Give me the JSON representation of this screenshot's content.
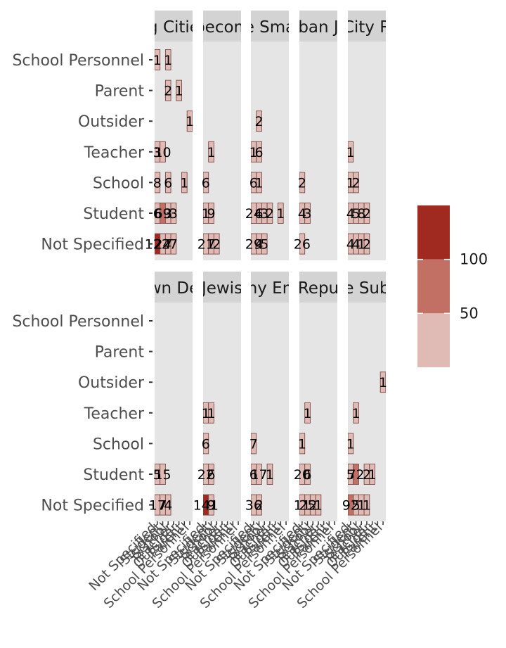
{
  "chart_data": {
    "type": "heatmap",
    "title": "",
    "xlabel": "",
    "ylabel": "",
    "y_categories": [
      "School Personnel",
      "Parent",
      "Outsider",
      "Teacher",
      "School",
      "Student",
      "Not Specified"
    ],
    "x_categories": [
      "Not Specified",
      "Student",
      "School",
      "Teacher",
      "Outsider",
      "Parent",
      "School Personnel"
    ],
    "panels": [
      {
        "strip": "g Citie",
        "cells": [
          {
            "y": "School Personnel",
            "x": "Not Specified",
            "label": "1",
            "value": 1
          },
          {
            "y": "School Personnel",
            "x": "School",
            "label": "1",
            "value": 1
          },
          {
            "y": "Parent",
            "x": "School",
            "label": "2",
            "value": 2
          },
          {
            "y": "Parent",
            "x": "Outsider",
            "label": "1",
            "value": 1
          },
          {
            "y": "Outsider",
            "x": "School Personnel",
            "label": "1",
            "value": 1
          },
          {
            "y": "Teacher",
            "x": "Not Specified",
            "label": "3",
            "value": 3
          },
          {
            "y": "Teacher",
            "x": "Student",
            "label": "10",
            "value": 10
          },
          {
            "y": "School",
            "x": "Not Specified",
            "label": "8",
            "value": 8
          },
          {
            "y": "School",
            "x": "School",
            "label": "6",
            "value": 6
          },
          {
            "y": "School",
            "x": "Parent",
            "label": "1",
            "value": 1
          },
          {
            "y": "Student",
            "x": "Not Specified",
            "label": "6",
            "value": 6
          },
          {
            "y": "Student",
            "x": "Student",
            "label": "69",
            "value": 69
          },
          {
            "y": "Student",
            "x": "School",
            "label": "3",
            "value": 3
          },
          {
            "y": "Student",
            "x": "Teacher",
            "label": "3",
            "value": 3
          },
          {
            "y": "Not Specified",
            "x": "Not Specified",
            "label": "122",
            "value": 122
          },
          {
            "y": "Not Specified",
            "x": "Student",
            "label": "24",
            "value": 24
          },
          {
            "y": "Not Specified",
            "x": "School",
            "label": "7",
            "value": 7
          },
          {
            "y": "Not Specified",
            "x": "Teacher",
            "label": "7",
            "value": 7
          }
        ]
      },
      {
        "strip": "becom",
        "cells": [
          {
            "y": "Teacher",
            "x": "Student",
            "label": "1",
            "value": 1
          },
          {
            "y": "School",
            "x": "Not Specified",
            "label": "6",
            "value": 6
          },
          {
            "y": "Student",
            "x": "Not Specified",
            "label": "1",
            "value": 1
          },
          {
            "y": "Student",
            "x": "Student",
            "label": "9",
            "value": 9
          },
          {
            "y": "Not Specified",
            "x": "Not Specified",
            "label": "21",
            "value": 21
          },
          {
            "y": "Not Specified",
            "x": "Student",
            "label": "7",
            "value": 7
          },
          {
            "y": "Not Specified",
            "x": "School",
            "label": "2",
            "value": 2
          }
        ]
      },
      {
        "strip": "e Sma",
        "cells": [
          {
            "y": "Outsider",
            "x": "Student",
            "label": "2",
            "value": 2
          },
          {
            "y": "Teacher",
            "x": "Not Specified",
            "label": "1",
            "value": 1
          },
          {
            "y": "Teacher",
            "x": "Student",
            "label": "6",
            "value": 6
          },
          {
            "y": "School",
            "x": "Not Specified",
            "label": "6",
            "value": 6
          },
          {
            "y": "School",
            "x": "Student",
            "label": "1",
            "value": 1
          },
          {
            "y": "Student",
            "x": "Not Specified",
            "label": "24",
            "value": 24
          },
          {
            "y": "Student",
            "x": "Student",
            "label": "6",
            "value": 6
          },
          {
            "y": "Student",
            "x": "School",
            "label": "3",
            "value": 3
          },
          {
            "y": "Student",
            "x": "Teacher",
            "label": "2",
            "value": 2
          },
          {
            "y": "Student",
            "x": "Parent",
            "label": "1",
            "value": 1
          },
          {
            "y": "Not Specified",
            "x": "Not Specified",
            "label": "29",
            "value": 29
          },
          {
            "y": "Not Specified",
            "x": "Student",
            "label": "4",
            "value": 4
          },
          {
            "y": "Not Specified",
            "x": "School",
            "label": "5",
            "value": 5
          }
        ]
      },
      {
        "strip": "ban J",
        "cells": [
          {
            "y": "School",
            "x": "Not Specified",
            "label": "2",
            "value": 2
          },
          {
            "y": "Student",
            "x": "Not Specified",
            "label": "4",
            "value": 4
          },
          {
            "y": "Student",
            "x": "Student",
            "label": "3",
            "value": 3
          },
          {
            "y": "Not Specified",
            "x": "Not Specified",
            "label": "26",
            "value": 26
          }
        ]
      },
      {
        "strip": "City R",
        "cells": [
          {
            "y": "Teacher",
            "x": "Not Specified",
            "label": "1",
            "value": 1
          },
          {
            "y": "School",
            "x": "Not Specified",
            "label": "1",
            "value": 1
          },
          {
            "y": "School",
            "x": "Student",
            "label": "2",
            "value": 2
          },
          {
            "y": "Student",
            "x": "Not Specified",
            "label": "4",
            "value": 4
          },
          {
            "y": "Student",
            "x": "Student",
            "label": "5",
            "value": 5
          },
          {
            "y": "Student",
            "x": "School",
            "label": "8",
            "value": 8
          },
          {
            "y": "Student",
            "x": "Teacher",
            "label": "2",
            "value": 2
          },
          {
            "y": "Not Specified",
            "x": "Not Specified",
            "label": "4",
            "value": 4
          },
          {
            "y": "Not Specified",
            "x": "Student",
            "label": "4",
            "value": 4
          },
          {
            "y": "Not Specified",
            "x": "School",
            "label": "1",
            "value": 1
          },
          {
            "y": "Not Specified",
            "x": "Teacher",
            "label": "2",
            "value": 2
          }
        ]
      },
      {
        "strip": "wn De",
        "cells": [
          {
            "y": "Student",
            "x": "Not Specified",
            "label": "5",
            "value": 5
          },
          {
            "y": "Student",
            "x": "Student",
            "label": "15",
            "value": 15
          },
          {
            "y": "Not Specified",
            "x": "Not Specified",
            "label": "17",
            "value": 17
          },
          {
            "y": "Not Specified",
            "x": "Student",
            "label": "7",
            "value": 7
          },
          {
            "y": "Not Specified",
            "x": "School",
            "label": "4",
            "value": 4
          }
        ]
      },
      {
        "strip": "Jewis",
        "cells": [
          {
            "y": "Teacher",
            "x": "Not Specified",
            "label": "1",
            "value": 1
          },
          {
            "y": "Teacher",
            "x": "Student",
            "label": "1",
            "value": 1
          },
          {
            "y": "School",
            "x": "Not Specified",
            "label": "6",
            "value": 6
          },
          {
            "y": "Student",
            "x": "Not Specified",
            "label": "22",
            "value": 22
          },
          {
            "y": "Student",
            "x": "Student",
            "label": "6",
            "value": 6
          },
          {
            "y": "Not Specified",
            "x": "Not Specified",
            "label": "141",
            "value": 141
          },
          {
            "y": "Not Specified",
            "x": "Student",
            "label": "9",
            "value": 9
          }
        ]
      },
      {
        "strip": "ny En",
        "cells": [
          {
            "y": "School",
            "x": "Not Specified",
            "label": "7",
            "value": 7
          },
          {
            "y": "Student",
            "x": "Not Specified",
            "label": "6",
            "value": 6
          },
          {
            "y": "Student",
            "x": "Student",
            "label": "17",
            "value": 17
          },
          {
            "y": "Student",
            "x": "Teacher",
            "label": "1",
            "value": 1
          },
          {
            "y": "Not Specified",
            "x": "Not Specified",
            "label": "36",
            "value": 36
          },
          {
            "y": "Not Specified",
            "x": "Student",
            "label": "2",
            "value": 2
          }
        ]
      },
      {
        "strip": "Repu",
        "cells": [
          {
            "y": "Teacher",
            "x": "Student",
            "label": "1",
            "value": 1
          },
          {
            "y": "School",
            "x": "Not Specified",
            "label": "1",
            "value": 1
          },
          {
            "y": "Student",
            "x": "Not Specified",
            "label": "20",
            "value": 20
          },
          {
            "y": "Student",
            "x": "Student",
            "label": "6",
            "value": 6
          },
          {
            "y": "Not Specified",
            "x": "Not Specified",
            "label": "11",
            "value": 11
          },
          {
            "y": "Not Specified",
            "x": "Student",
            "label": "25",
            "value": 25
          },
          {
            "y": "Not Specified",
            "x": "School",
            "label": "2",
            "value": 2
          },
          {
            "y": "Not Specified",
            "x": "Teacher",
            "label": "1",
            "value": 1
          }
        ]
      },
      {
        "strip": "e Sub",
        "cells": [
          {
            "y": "Outsider",
            "x": "School Personnel",
            "label": "1",
            "value": 1
          },
          {
            "y": "Teacher",
            "x": "Student",
            "label": "1",
            "value": 1
          },
          {
            "y": "School",
            "x": "Not Specified",
            "label": "1",
            "value": 1
          },
          {
            "y": "Student",
            "x": "Not Specified",
            "label": "5",
            "value": 5
          },
          {
            "y": "Student",
            "x": "Student",
            "label": "72",
            "value": 72
          },
          {
            "y": "Student",
            "x": "Teacher",
            "label": "2",
            "value": 2
          },
          {
            "y": "Student",
            "x": "Outsider",
            "label": "1",
            "value": 1
          },
          {
            "y": "Not Specified",
            "x": "Not Specified",
            "label": "92",
            "value": 92
          },
          {
            "y": "Not Specified",
            "x": "Student",
            "label": "5",
            "value": 5
          },
          {
            "y": "Not Specified",
            "x": "School",
            "label": "1",
            "value": 1
          },
          {
            "y": "Not Specified",
            "x": "Teacher",
            "label": "1",
            "value": 1
          }
        ]
      }
    ],
    "legend": {
      "position": "right",
      "breaks": [
        "100",
        "50"
      ],
      "bins": [
        {
          "min": 0,
          "max": 50,
          "color": "#e0bab4"
        },
        {
          "min": 50,
          "max": 100,
          "color": "#c27063"
        },
        {
          "min": 100,
          "max": 150,
          "color": "#a12a20"
        }
      ]
    },
    "colors": {
      "panel_background": "#e5e5e5",
      "strip_background": "#d3d3d3",
      "cell_border": "#7a4a45"
    }
  }
}
